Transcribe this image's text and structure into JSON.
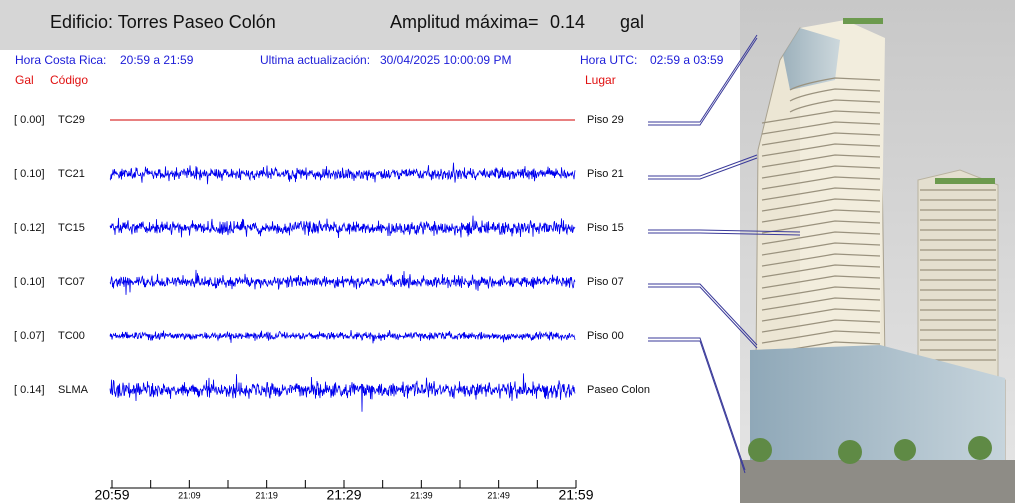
{
  "header": {
    "building": "Edificio: Torres Paseo Colón",
    "amplitude_label": "Amplitud máxima=",
    "amplitude_value": "0.14",
    "amplitude_unit": "gal"
  },
  "info": {
    "local_label": "Hora Costa Rica:",
    "local_range": "20:59 a 21:59",
    "update_label": "Ultima actualización:",
    "update_time": "30/04/2025 10:00:09 PM",
    "utc_label": "Hora UTC:",
    "utc_range": "02:59 a 03:59"
  },
  "columns": {
    "gal": "Gal",
    "code": "Código",
    "place": "Lugar"
  },
  "channels": [
    {
      "gal": "[  0.00]",
      "code": "TC29",
      "place": "Piso 29"
    },
    {
      "gal": "[  0.10]",
      "code": "TC21",
      "place": "Piso 21"
    },
    {
      "gal": "[  0.12]",
      "code": "TC15",
      "place": "Piso 15"
    },
    {
      "gal": "[  0.10]",
      "code": "TC07",
      "place": "Piso 07"
    },
    {
      "gal": "[  0.07]",
      "code": "TC00",
      "place": "Piso 00"
    },
    {
      "gal": "[  0.14]",
      "code": "SLMA",
      "place": "Paseo Colon"
    }
  ],
  "time_axis": {
    "labels": [
      "20:59",
      "21:09",
      "21:19",
      "21:29",
      "21:39",
      "21:49",
      "21:59"
    ]
  }
}
